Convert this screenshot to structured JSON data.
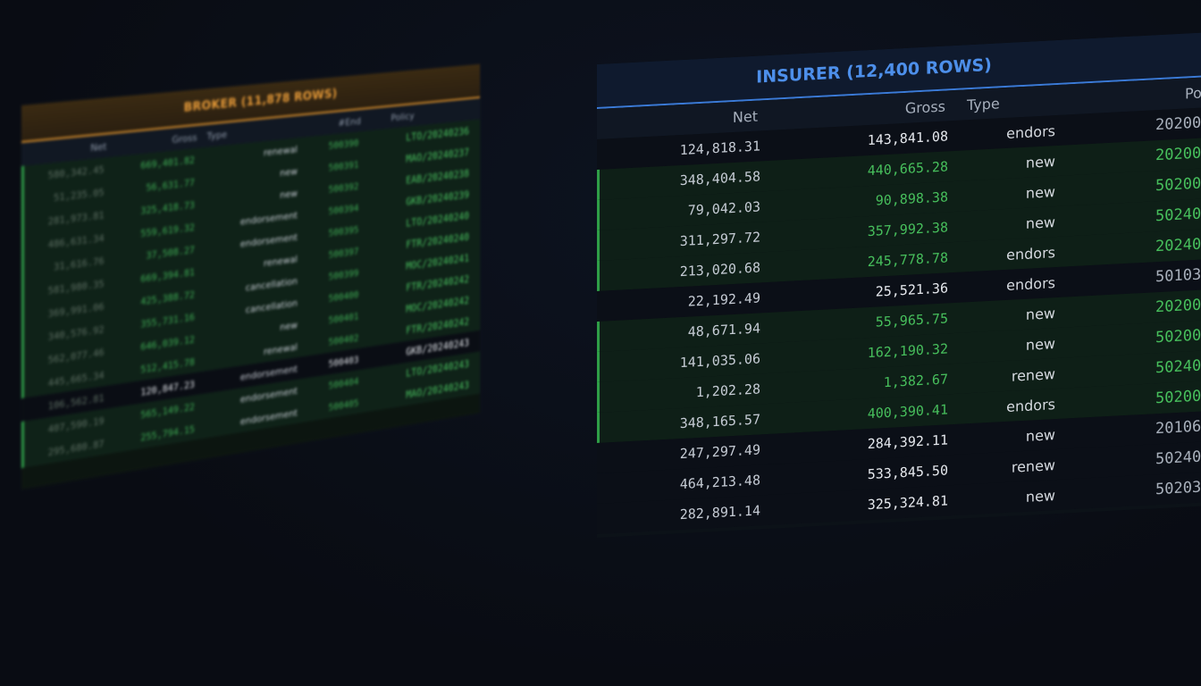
{
  "broker": {
    "title": "BROKER (11,878 ROWS)",
    "columns": [
      "Net",
      "Gross",
      "Type",
      "#End",
      "Policy"
    ],
    "rows": [
      {
        "net": "580,342.45",
        "gross": "669,401.82",
        "type": "renewal",
        "end": "500390",
        "policy": "LTO/20240236",
        "status": "match"
      },
      {
        "net": "51,235.05",
        "gross": "56,631.77",
        "type": "new",
        "end": "500391",
        "policy": "MAO/20240237",
        "status": "match"
      },
      {
        "net": "281,973.81",
        "gross": "325,418.73",
        "type": "new",
        "end": "500392",
        "policy": "EAB/20240238",
        "status": "match"
      },
      {
        "net": "486,631.34",
        "gross": "559,619.32",
        "type": "endorsement",
        "end": "500394",
        "policy": "GKB/20240239",
        "status": "match"
      },
      {
        "net": "31,616.76",
        "gross": "37,508.27",
        "type": "endorsement",
        "end": "500395",
        "policy": "LTO/20240240",
        "status": "match"
      },
      {
        "net": "581,980.35",
        "gross": "669,394.81",
        "type": "renewal",
        "end": "500397",
        "policy": "FTR/20240240",
        "status": "match"
      },
      {
        "net": "369,991.06",
        "gross": "425,388.72",
        "type": "cancellation",
        "end": "500399",
        "policy": "MOC/20240241",
        "status": "match"
      },
      {
        "net": "340,576.92",
        "gross": "355,731.16",
        "type": "cancellation",
        "end": "500400",
        "policy": "FTR/20240242",
        "status": "match"
      },
      {
        "net": "562,077.46",
        "gross": "646,039.12",
        "type": "new",
        "end": "500401",
        "policy": "MOC/20240242",
        "status": "match"
      },
      {
        "net": "445,665.34",
        "gross": "512,415.78",
        "type": "renewal",
        "end": "500402",
        "policy": "FTR/20240242",
        "status": "match"
      },
      {
        "net": "106,562.81",
        "gross": "120,847.23",
        "type": "endorsement",
        "end": "500403",
        "policy": "GKB/20240243",
        "status": "plain"
      },
      {
        "net": "407,590.19",
        "gross": "565,149.22",
        "type": "endorsement",
        "end": "500404",
        "policy": "LTO/20240243",
        "status": "match"
      },
      {
        "net": "295,680.87",
        "gross": "255,794.15",
        "type": "endorsement",
        "end": "500405",
        "policy": "MAO/20240243",
        "status": "match"
      }
    ]
  },
  "insurer": {
    "title": "INSURER (12,400 ROWS)",
    "columns": [
      "Net",
      "Gross",
      "Type",
      "Policy"
    ],
    "rows": [
      {
        "net": "124,818.31",
        "gross": "143,841.08",
        "type": "endors",
        "policy": "20200",
        "status": "plain"
      },
      {
        "net": "348,404.58",
        "gross": "440,665.28",
        "type": "new",
        "policy": "20200",
        "status": "match"
      },
      {
        "net": "79,042.03",
        "gross": "90,898.38",
        "type": "new",
        "policy": "50200",
        "status": "match"
      },
      {
        "net": "311,297.72",
        "gross": "357,992.38",
        "type": "new",
        "policy": "50240",
        "status": "match"
      },
      {
        "net": "213,020.68",
        "gross": "245,778.78",
        "type": "endors",
        "policy": "20240",
        "status": "match"
      },
      {
        "net": "22,192.49",
        "gross": "25,521.36",
        "type": "endors",
        "policy": "50103",
        "status": "plain"
      },
      {
        "net": "48,671.94",
        "gross": "55,965.75",
        "type": "new",
        "policy": "20200",
        "status": "match"
      },
      {
        "net": "141,035.06",
        "gross": "162,190.32",
        "type": "new",
        "policy": "50200",
        "status": "match"
      },
      {
        "net": "1,202.28",
        "gross": "1,382.67",
        "type": "renew",
        "policy": "50240",
        "status": "match"
      },
      {
        "net": "348,165.57",
        "gross": "400,390.41",
        "type": "endors",
        "policy": "50200",
        "status": "match"
      },
      {
        "net": "247,297.49",
        "gross": "284,392.11",
        "type": "new",
        "policy": "20106",
        "status": "plain"
      },
      {
        "net": "464,213.48",
        "gross": "533,845.50",
        "type": "renew",
        "policy": "50240",
        "status": "plain"
      },
      {
        "net": "282,891.14",
        "gross": "325,324.81",
        "type": "new",
        "policy": "50203",
        "status": "plain"
      }
    ]
  },
  "colors": {
    "broker_accent": "#d98f2b",
    "insurer_accent": "#3b7bd8",
    "match_green": "#47bf5c",
    "background": "#0a0e16"
  }
}
